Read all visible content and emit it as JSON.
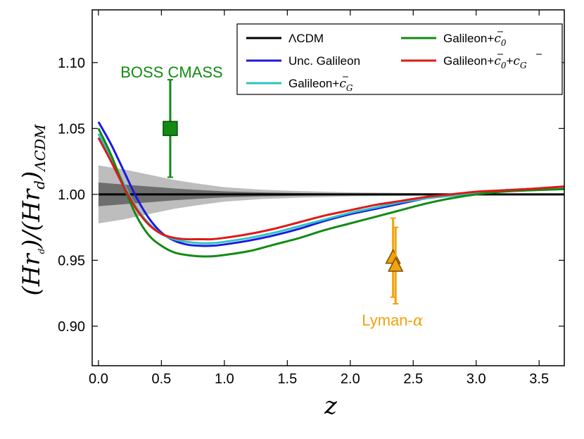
{
  "chart_data": {
    "type": "line",
    "title": "",
    "xlabel": "z",
    "ylabel": "(Hr_d)/(Hr_d)_ΛCDM",
    "ylabel_parts": {
      "open": "(",
      "H": "H",
      "r": "r",
      "d": "d",
      "close": ")",
      "slash": "/",
      "subscript": "ΛCDM"
    },
    "xlim": [
      -0.05,
      3.7
    ],
    "ylim": [
      0.87,
      1.14
    ],
    "xticks": [
      0.0,
      0.5,
      1.0,
      1.5,
      2.0,
      2.5,
      3.0,
      3.5
    ],
    "xtick_labels": [
      "0.0",
      "0.5",
      "1.0",
      "1.5",
      "2.0",
      "2.5",
      "3.0",
      "3.5"
    ],
    "yticks": [
      0.9,
      0.95,
      1.0,
      1.05,
      1.1
    ],
    "ytick_labels": [
      "0.90",
      "0.95",
      "1.00",
      "1.05",
      "1.10"
    ],
    "grid": false,
    "legend_position": "top-right",
    "series": [
      {
        "name": "ΛCDM",
        "label_parts": {
          "main": "ΛCDM"
        },
        "color": "#000000",
        "x": [
          0.0,
          3.7
        ],
        "y": [
          1.0,
          1.0
        ]
      },
      {
        "name": "Unc. Galileon",
        "label_parts": {
          "main": "Unc. Galileon"
        },
        "color": "#1a1adf",
        "x": [
          0.0,
          0.1,
          0.2,
          0.3,
          0.4,
          0.5,
          0.6,
          0.7,
          0.8,
          0.9,
          1.0,
          1.2,
          1.4,
          1.6,
          1.8,
          2.0,
          2.2,
          2.4,
          2.6,
          2.8,
          3.0,
          3.2,
          3.4,
          3.7
        ],
        "y": [
          1.055,
          1.038,
          1.018,
          0.998,
          0.982,
          0.971,
          0.965,
          0.962,
          0.961,
          0.961,
          0.962,
          0.965,
          0.969,
          0.974,
          0.98,
          0.985,
          0.989,
          0.993,
          0.997,
          0.999,
          1.001,
          1.003,
          1.004,
          1.005
        ]
      },
      {
        "name": "Galileon+c̄_G",
        "label_parts": {
          "main": "Galileon+",
          "c": "c",
          "sub": "G"
        },
        "color": "#2ec4c4",
        "x": [
          0.0,
          0.1,
          0.2,
          0.3,
          0.4,
          0.5,
          0.6,
          0.7,
          0.8,
          0.9,
          1.0,
          1.2,
          1.4,
          1.6,
          1.8,
          2.0,
          2.2,
          2.4,
          2.6,
          2.8,
          3.0,
          3.2,
          3.4,
          3.7
        ],
        "y": [
          1.046,
          1.028,
          1.008,
          0.99,
          0.978,
          0.97,
          0.966,
          0.964,
          0.963,
          0.963,
          0.964,
          0.967,
          0.971,
          0.976,
          0.981,
          0.986,
          0.99,
          0.994,
          0.997,
          0.999,
          1.001,
          1.003,
          1.004,
          1.005
        ]
      },
      {
        "name": "Galileon+c̄_0",
        "label_parts": {
          "main": "Galileon+",
          "c": "c",
          "sub": "0"
        },
        "color": "#138a13",
        "x": [
          0.0,
          0.1,
          0.2,
          0.3,
          0.4,
          0.5,
          0.6,
          0.7,
          0.8,
          0.9,
          1.0,
          1.2,
          1.4,
          1.6,
          1.8,
          2.0,
          2.2,
          2.4,
          2.6,
          2.8,
          3.0,
          3.2,
          3.4,
          3.7
        ],
        "y": [
          1.05,
          1.03,
          1.006,
          0.984,
          0.969,
          0.961,
          0.956,
          0.954,
          0.953,
          0.953,
          0.954,
          0.957,
          0.962,
          0.967,
          0.973,
          0.978,
          0.983,
          0.988,
          0.993,
          0.997,
          1.0,
          1.002,
          1.003,
          1.004
        ]
      },
      {
        "name": "Galileon+c̄_0+c̄_G",
        "label_parts": {
          "main": "Galileon+",
          "c": "c",
          "sub": "0",
          "plus": "+",
          "c2": "c",
          "sub2": "G"
        },
        "color": "#e01818",
        "x": [
          0.0,
          0.1,
          0.2,
          0.3,
          0.4,
          0.5,
          0.6,
          0.7,
          0.8,
          0.9,
          1.0,
          1.2,
          1.4,
          1.6,
          1.8,
          2.0,
          2.2,
          2.4,
          2.6,
          2.8,
          3.0,
          3.2,
          3.4,
          3.7
        ],
        "y": [
          1.043,
          1.025,
          1.006,
          0.989,
          0.977,
          0.97,
          0.967,
          0.966,
          0.966,
          0.966,
          0.967,
          0.97,
          0.974,
          0.979,
          0.984,
          0.988,
          0.992,
          0.995,
          0.998,
          1.0,
          1.002,
          1.003,
          1.004,
          1.006
        ]
      }
    ],
    "bands": [
      {
        "name": "2-sigma band",
        "color": "#bdbdbd",
        "x": [
          0.0,
          0.2,
          0.4,
          0.6,
          0.8,
          1.0,
          1.3,
          1.6,
          2.0,
          2.5,
          3.0,
          3.7
        ],
        "half_width": [
          0.022,
          0.019,
          0.015,
          0.011,
          0.008,
          0.0055,
          0.0035,
          0.0025,
          0.0015,
          0.001,
          0.0006,
          0.0004
        ]
      },
      {
        "name": "1-sigma band",
        "color": "#6e6e6e",
        "x": [
          0.0,
          0.2,
          0.4,
          0.6,
          0.8,
          1.0,
          1.3,
          1.6,
          2.0,
          2.5,
          3.0,
          3.7
        ],
        "half_width": [
          0.009,
          0.0075,
          0.006,
          0.0045,
          0.0033,
          0.0023,
          0.0015,
          0.001,
          0.0006,
          0.0004,
          0.0003,
          0.0002
        ]
      }
    ],
    "data_points": [
      {
        "name": "BOSS CMASS",
        "marker": "square",
        "color": "#138a13",
        "edge": "#0a4d0a",
        "x": 0.57,
        "y": 1.05,
        "yerr_low": 0.037,
        "yerr_high": 0.037
      },
      {
        "name": "Lyman-α 1",
        "marker": "triangle",
        "color": "#f2a20c",
        "edge": "#7a4f00",
        "x": 2.34,
        "y": 0.952,
        "yerr_low": 0.03,
        "yerr_high": 0.03
      },
      {
        "name": "Lyman-α 2",
        "marker": "triangle",
        "color": "#f2a20c",
        "edge": "#7a4f00",
        "x": 2.36,
        "y": 0.946,
        "yerr_low": 0.029,
        "yerr_high": 0.029
      }
    ],
    "annotations": [
      {
        "text": "BOSS CMASS",
        "color": "#138a13",
        "x": 0.57,
        "y": 1.098
      },
      {
        "text_main": "Lyman-",
        "text_alpha": "α",
        "color": "#f2a20c",
        "x": 2.35,
        "y": 0.906
      }
    ]
  }
}
